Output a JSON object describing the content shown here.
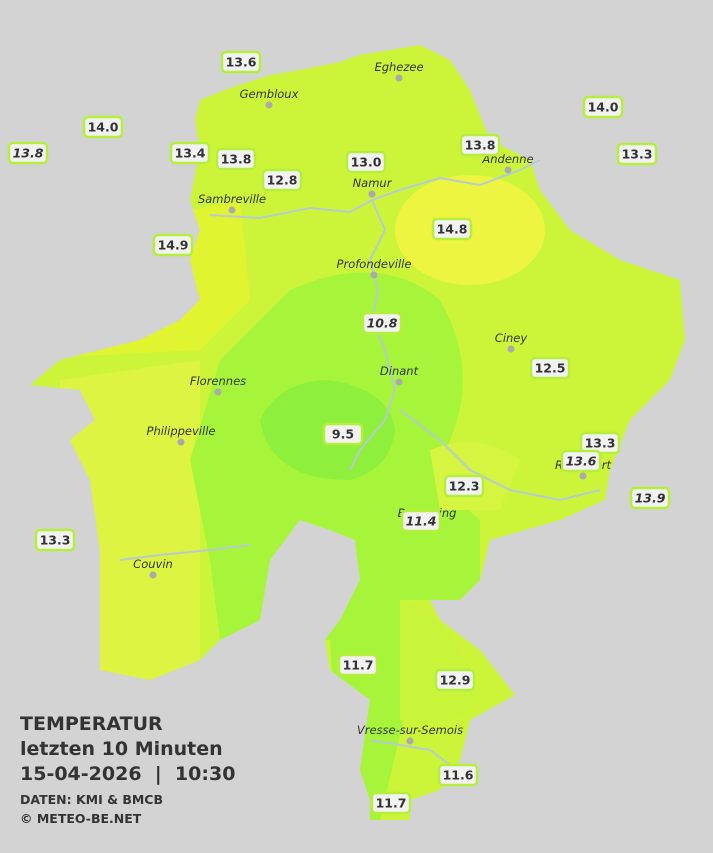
{
  "title": {
    "heading": "TEMPERATUR",
    "subheading": "letzten 10 Minuten",
    "datetime": "15-04-2026  |  10:30",
    "source": "DATEN: KMI & BMCB",
    "copyright": "© METEO-BE.NET"
  },
  "cities": [
    "Eghezee",
    "Gembloux",
    "Andenne",
    "Namur",
    "Sambreville",
    "Profondeville",
    "Ciney",
    "Dinant",
    "Florennes",
    "Philippeville",
    "Rochefort",
    "Beauraing",
    "Couvin",
    "Vresse-sur-Semois"
  ],
  "stations": [
    {
      "value": "13.6",
      "italic": false
    },
    {
      "value": "14.0",
      "italic": false
    },
    {
      "value": "14.0",
      "italic": false
    },
    {
      "value": "13.8",
      "italic": true
    },
    {
      "value": "13.4",
      "italic": false
    },
    {
      "value": "13.8",
      "italic": false
    },
    {
      "value": "12.8",
      "italic": false
    },
    {
      "value": "13.0",
      "italic": false
    },
    {
      "value": "13.8",
      "italic": false
    },
    {
      "value": "13.3",
      "italic": false
    },
    {
      "value": "14.8",
      "italic": false
    },
    {
      "value": "14.9",
      "italic": false
    },
    {
      "value": "10.8",
      "italic": true
    },
    {
      "value": "12.5",
      "italic": false
    },
    {
      "value": "9.5",
      "italic": false
    },
    {
      "value": "13.3",
      "italic": false
    },
    {
      "value": "13.6",
      "italic": true
    },
    {
      "value": "13.9",
      "italic": true
    },
    {
      "value": "12.3",
      "italic": false
    },
    {
      "value": "11.4",
      "italic": true
    },
    {
      "value": "13.3",
      "italic": false
    },
    {
      "value": "11.7",
      "italic": false
    },
    {
      "value": "12.9",
      "italic": false
    },
    {
      "value": "11.6",
      "italic": false
    },
    {
      "value": "11.7",
      "italic": false
    }
  ]
}
